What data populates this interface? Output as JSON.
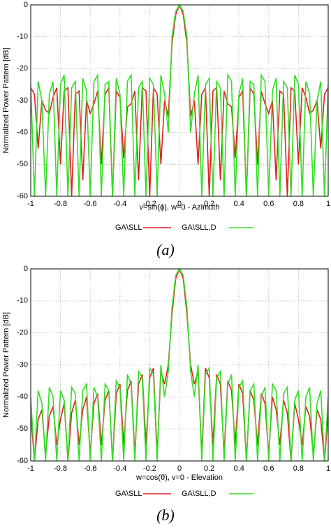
{
  "chart_data": [
    {
      "type": "line",
      "caption": "(a)",
      "xlabel": "v=sin(ϕ), w=0   -   Azimuth",
      "ylabel": "Normalized Power Pattern [dB]",
      "x": [
        -1,
        -0.975,
        -0.95,
        -0.925,
        -0.9,
        -0.875,
        -0.85,
        -0.825,
        -0.8,
        -0.775,
        -0.75,
        -0.725,
        -0.7,
        -0.675,
        -0.65,
        -0.625,
        -0.6,
        -0.575,
        -0.55,
        -0.525,
        -0.5,
        -0.475,
        -0.45,
        -0.425,
        -0.4,
        -0.375,
        -0.35,
        -0.325,
        -0.3,
        -0.275,
        -0.25,
        -0.225,
        -0.2,
        -0.175,
        -0.15,
        -0.125,
        -0.1,
        -0.075,
        -0.05,
        -0.025,
        0,
        0.025,
        0.05,
        0.075,
        0.1,
        0.125,
        0.15,
        0.175,
        0.2,
        0.225,
        0.25,
        0.275,
        0.3,
        0.325,
        0.35,
        0.375,
        0.4,
        0.425,
        0.45,
        0.475,
        0.5,
        0.525,
        0.55,
        0.575,
        0.6,
        0.625,
        0.65,
        0.675,
        0.7,
        0.725,
        0.75,
        0.775,
        0.8,
        0.825,
        0.85,
        0.875,
        0.9,
        0.925,
        0.95,
        0.975,
        1
      ],
      "series": [
        {
          "name": "GA\\SLL",
          "color": "#e02020",
          "values": [
            -26,
            -28,
            -45,
            -30,
            -33,
            -34,
            -29,
            -26,
            -50,
            -27,
            -26,
            -60,
            -28,
            -27,
            -55,
            -30,
            -34,
            -31,
            -27,
            -50,
            -28,
            -26,
            -60,
            -27,
            -29,
            -48,
            -32,
            -31,
            -27,
            -55,
            -26,
            -27,
            -60,
            -26,
            -28,
            -50,
            -30,
            -35,
            -12,
            -3,
            0,
            -3,
            -12,
            -35,
            -30,
            -50,
            -28,
            -26,
            -60,
            -27,
            -26,
            -55,
            -27,
            -31,
            -32,
            -48,
            -29,
            -27,
            -60,
            -26,
            -28,
            -50,
            -27,
            -31,
            -34,
            -30,
            -55,
            -27,
            -28,
            -60,
            -26,
            -27,
            -50,
            -26,
            -29,
            -34,
            -33,
            -30,
            -45,
            -28,
            -26
          ]
        },
        {
          "name": "GA\\SLL,D",
          "color": "#33dd22",
          "values": [
            -25,
            -60,
            -24,
            -30,
            -60,
            -28,
            -24,
            -60,
            -25,
            -22,
            -60,
            -26,
            -24,
            -60,
            -23,
            -27,
            -60,
            -24,
            -22,
            -60,
            -25,
            -24,
            -60,
            -23,
            -28,
            -60,
            -24,
            -22,
            -60,
            -26,
            -24,
            -60,
            -23,
            -25,
            -60,
            -22,
            -28,
            -40,
            -10,
            -2,
            0,
            -2,
            -10,
            -40,
            -28,
            -22,
            -60,
            -25,
            -23,
            -60,
            -24,
            -26,
            -60,
            -22,
            -24,
            -60,
            -28,
            -23,
            -60,
            -24,
            -25,
            -60,
            -22,
            -24,
            -60,
            -27,
            -23,
            -60,
            -24,
            -26,
            -60,
            -22,
            -25,
            -60,
            -24,
            -28,
            -60,
            -30,
            -24,
            -60,
            -25
          ]
        }
      ],
      "xlim": [
        -1,
        1
      ],
      "xticks": [
        -1,
        -0.8,
        -0.6,
        -0.4,
        -0.2,
        0,
        0.2,
        0.4,
        0.6,
        0.8,
        1
      ],
      "ylim": [
        -60,
        0
      ],
      "yticks": [
        0,
        -10,
        -20,
        -30,
        -40,
        -50,
        -60
      ],
      "grid": true
    },
    {
      "type": "line",
      "caption": "(b)",
      "xlabel": "w=cos(θ), v=0   -   Elevation",
      "ylabel": "Normalized Power Pattern [dB]",
      "x": [
        -1,
        -0.975,
        -0.95,
        -0.925,
        -0.9,
        -0.875,
        -0.85,
        -0.825,
        -0.8,
        -0.775,
        -0.75,
        -0.725,
        -0.7,
        -0.675,
        -0.65,
        -0.625,
        -0.6,
        -0.575,
        -0.55,
        -0.525,
        -0.5,
        -0.475,
        -0.45,
        -0.425,
        -0.4,
        -0.375,
        -0.35,
        -0.325,
        -0.3,
        -0.275,
        -0.25,
        -0.225,
        -0.2,
        -0.175,
        -0.15,
        -0.125,
        -0.1,
        -0.075,
        -0.05,
        -0.025,
        0,
        0.025,
        0.05,
        0.075,
        0.1,
        0.125,
        0.15,
        0.175,
        0.2,
        0.225,
        0.25,
        0.275,
        0.3,
        0.325,
        0.35,
        0.375,
        0.4,
        0.425,
        0.45,
        0.475,
        0.5,
        0.525,
        0.55,
        0.575,
        0.6,
        0.625,
        0.65,
        0.675,
        0.7,
        0.725,
        0.75,
        0.775,
        0.8,
        0.825,
        0.85,
        0.875,
        0.9,
        0.925,
        0.95,
        0.975,
        1
      ],
      "series": [
        {
          "name": "GA\\SLL",
          "color": "#e02020",
          "values": [
            -45,
            -60,
            -47,
            -44,
            -58,
            -46,
            -43,
            -55,
            -47,
            -42,
            -60,
            -45,
            -41,
            -55,
            -44,
            -40,
            -58,
            -42,
            -39,
            -55,
            -41,
            -38,
            -60,
            -39,
            -36,
            -55,
            -38,
            -35,
            -58,
            -36,
            -33,
            -55,
            -34,
            -31,
            -58,
            -32,
            -36,
            -30,
            -14,
            -3,
            0,
            -3,
            -14,
            -30,
            -36,
            -32,
            -58,
            -31,
            -34,
            -55,
            -33,
            -36,
            -58,
            -35,
            -38,
            -55,
            -36,
            -39,
            -60,
            -38,
            -41,
            -55,
            -39,
            -42,
            -58,
            -40,
            -44,
            -55,
            -41,
            -45,
            -60,
            -42,
            -47,
            -55,
            -43,
            -46,
            -58,
            -44,
            -47,
            -60,
            -45
          ]
        },
        {
          "name": "GA\\SLL,D",
          "color": "#33dd22",
          "values": [
            -40,
            -60,
            -38,
            -42,
            -60,
            -37,
            -40,
            -60,
            -38,
            -41,
            -60,
            -37,
            -39,
            -60,
            -38,
            -36,
            -60,
            -37,
            -40,
            -60,
            -36,
            -38,
            -60,
            -35,
            -37,
            -60,
            -33,
            -36,
            -60,
            -32,
            -34,
            -60,
            -31,
            -33,
            -60,
            -30,
            -40,
            -32,
            -12,
            -2,
            0,
            -2,
            -12,
            -32,
            -40,
            -30,
            -60,
            -33,
            -31,
            -60,
            -34,
            -32,
            -60,
            -36,
            -33,
            -60,
            -37,
            -35,
            -60,
            -38,
            -36,
            -60,
            -40,
            -37,
            -60,
            -36,
            -38,
            -60,
            -39,
            -37,
            -60,
            -41,
            -38,
            -60,
            -40,
            -37,
            -60,
            -42,
            -38,
            -60,
            -40
          ]
        }
      ],
      "xlim": [
        -1,
        1
      ],
      "xticks": [
        -1,
        -0.8,
        -0.6,
        -0.4,
        -0.2,
        0,
        0.2,
        0.4,
        0.6,
        0.8,
        1
      ],
      "ylim": [
        -60,
        0
      ],
      "yticks": [
        0,
        -10,
        -20,
        -30,
        -40,
        -50,
        -60
      ],
      "grid": true
    }
  ]
}
